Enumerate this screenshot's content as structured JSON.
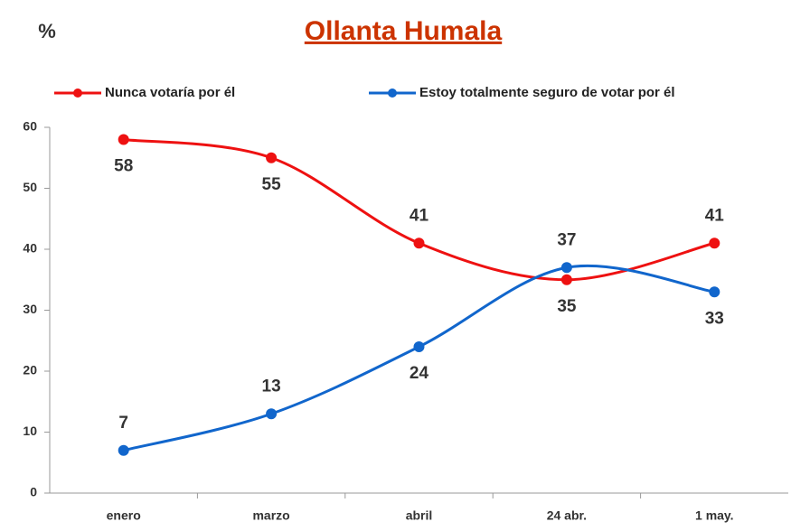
{
  "chart_data": {
    "type": "line",
    "title": "Ollanta Humala",
    "ylabel": "%",
    "categories": [
      "enero",
      "marzo",
      "abril",
      "24 abr.",
      "1 may."
    ],
    "series": [
      {
        "name": "Nunca votaría por él",
        "color": "#ee1111",
        "values": [
          58,
          55,
          41,
          35,
          41
        ]
      },
      {
        "name": "Estoy totalmente seguro de votar por él",
        "color": "#1166cc",
        "values": [
          7,
          13,
          24,
          37,
          33
        ]
      }
    ],
    "ylim": [
      0,
      60
    ],
    "yticks": [
      0,
      10,
      20,
      30,
      40,
      50,
      60
    ],
    "grid": false,
    "legend": "top"
  }
}
